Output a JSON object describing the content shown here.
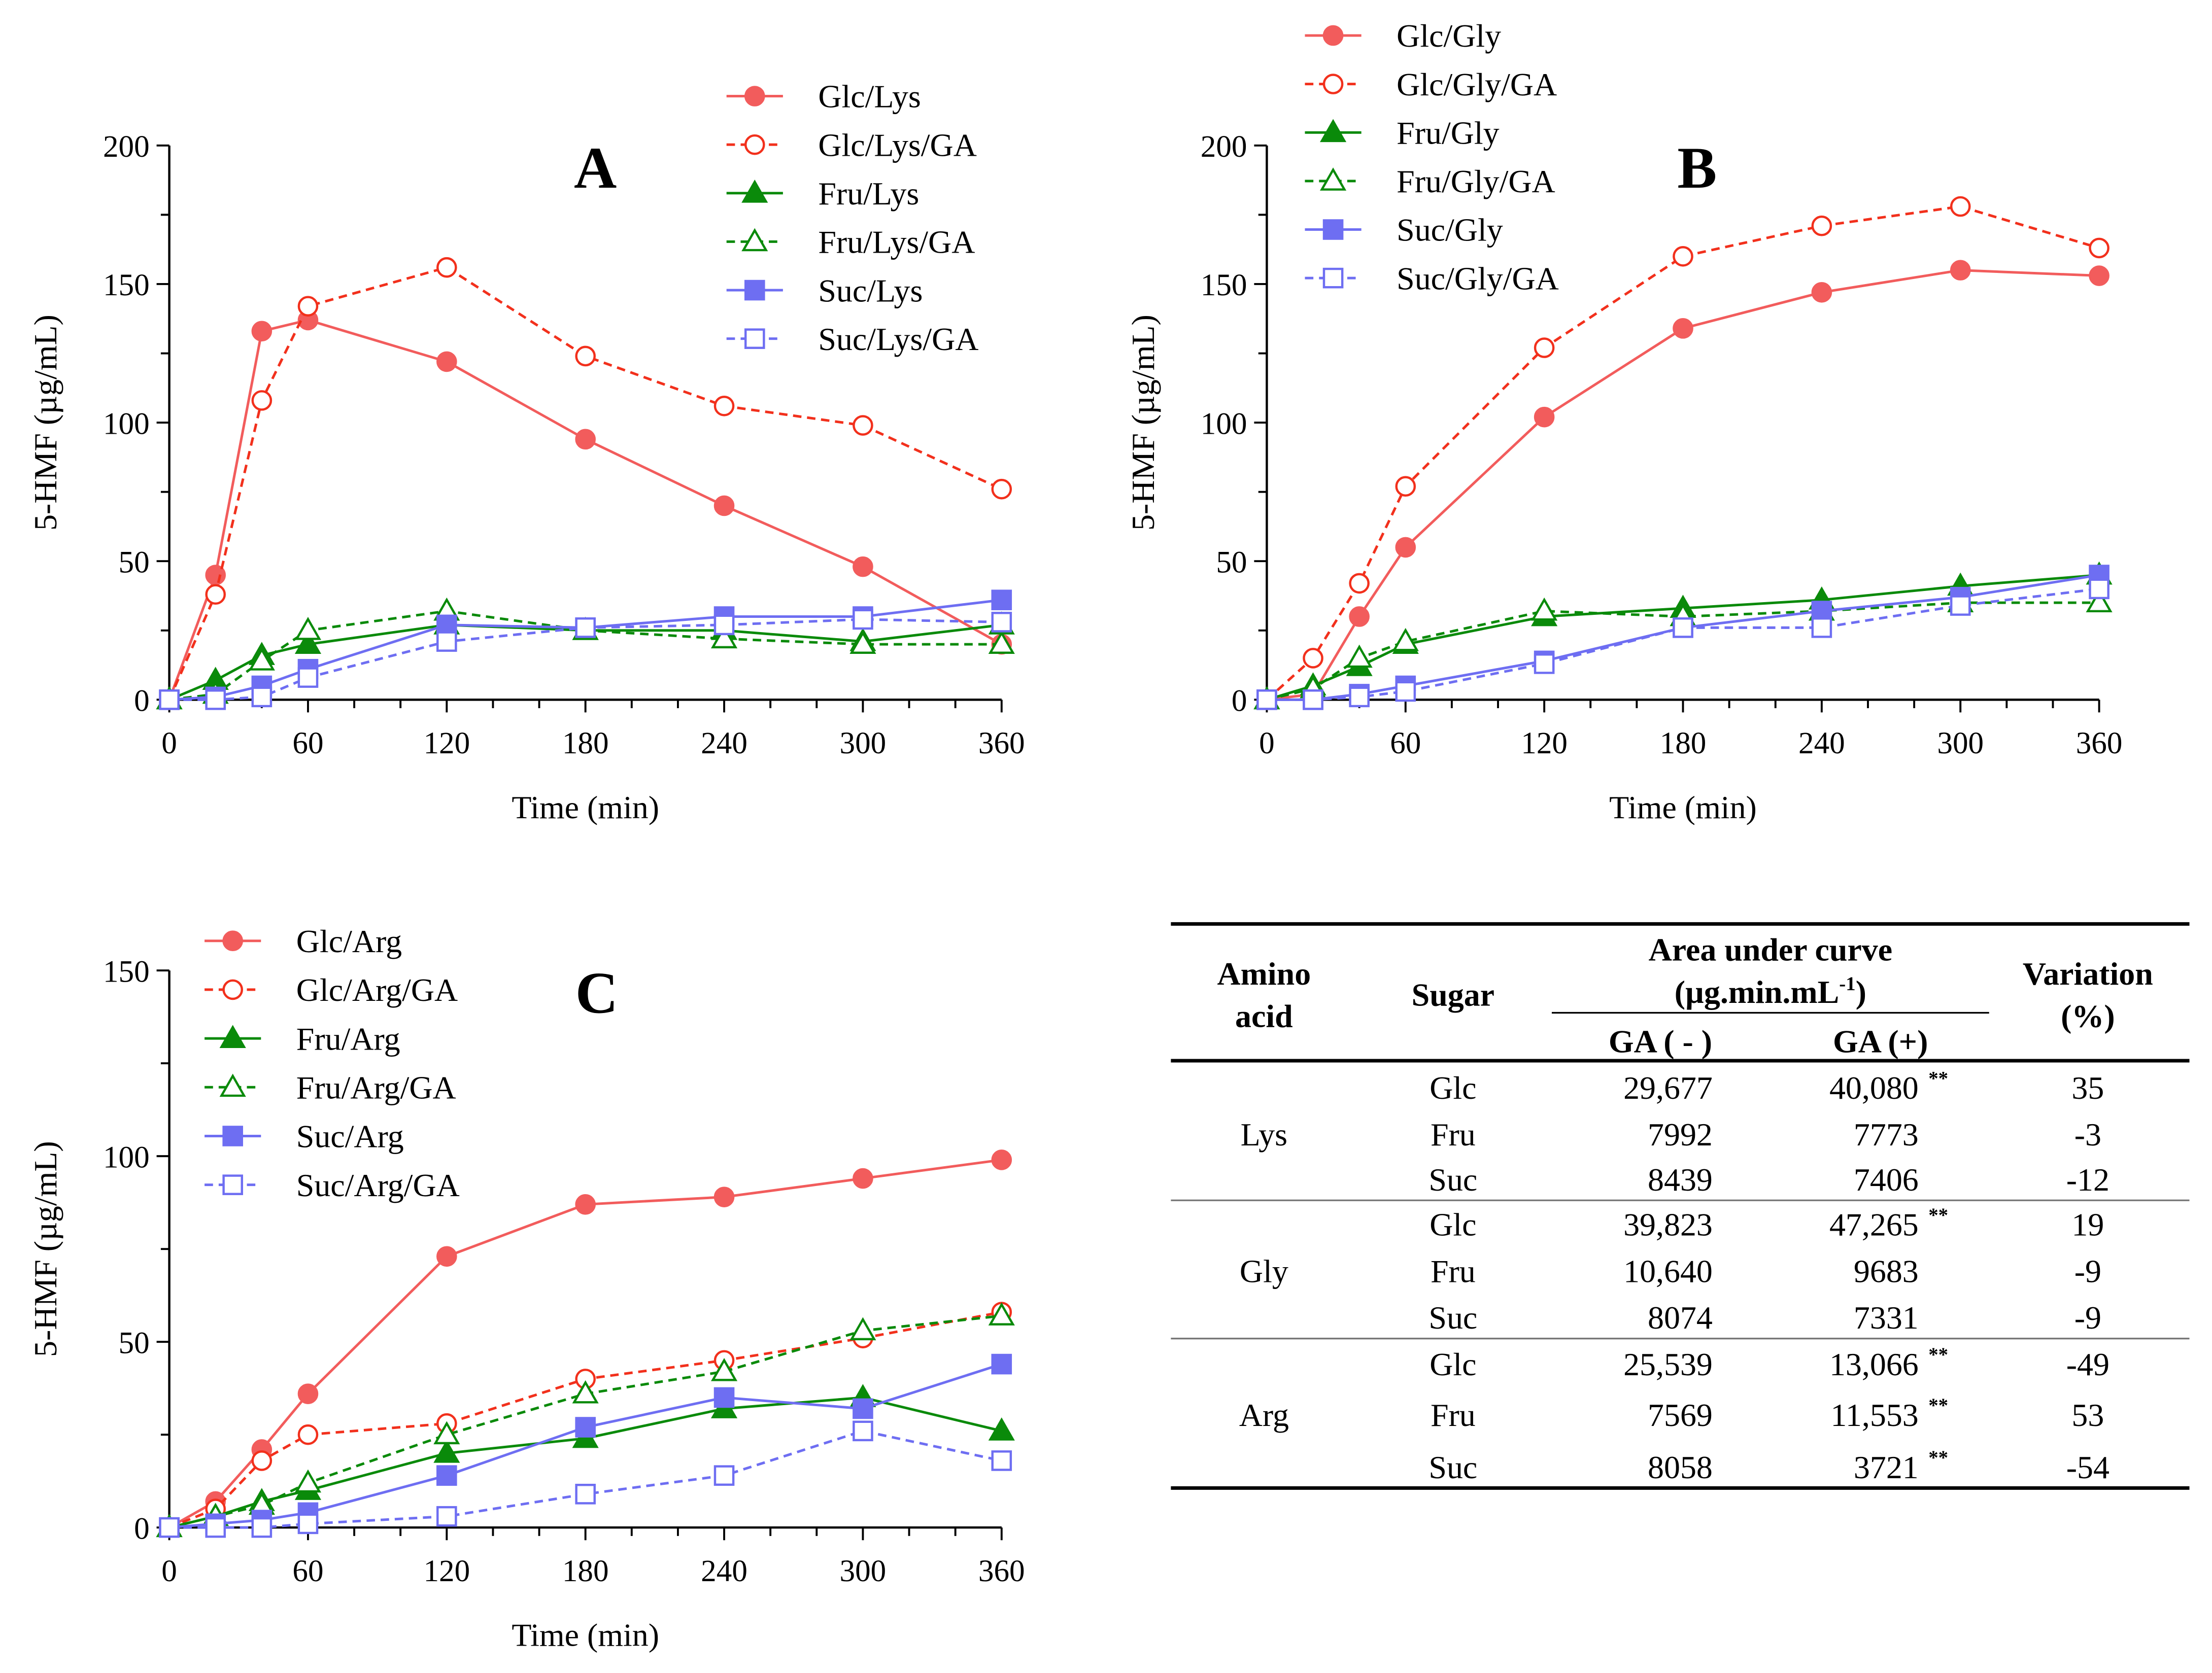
{
  "chart_data": [
    {
      "type": "line",
      "panel": "A",
      "xlabel": "Time (min)",
      "ylabel": "5-HMF (µg/mL)",
      "x": [
        0,
        20,
        40,
        60,
        120,
        180,
        240,
        300,
        360
      ],
      "xticks": [
        "0",
        "60",
        "120",
        "180",
        "240",
        "300",
        "360"
      ],
      "yticks": [
        "0",
        "50",
        "100",
        "150",
        "200"
      ],
      "xlim": [
        0,
        360
      ],
      "ylim": [
        0,
        200
      ],
      "legend_position": "top-right",
      "series": [
        {
          "name": "Glc/Lys",
          "color": "#f25c5c",
          "style": "solid",
          "marker": "circle-filled",
          "values": [
            0,
            45,
            133,
            137,
            122,
            94,
            70,
            48,
            20
          ]
        },
        {
          "name": "Glc/Lys/GA",
          "color": "#f2301c",
          "style": "dashed",
          "marker": "circle-open",
          "values": [
            0,
            38,
            108,
            142,
            156,
            124,
            106,
            99,
            76
          ]
        },
        {
          "name": "Fru/Lys",
          "color": "#0a8a0a",
          "style": "solid",
          "marker": "triangle-filled",
          "values": [
            0,
            7,
            16,
            20,
            27,
            25,
            25,
            21,
            27
          ]
        },
        {
          "name": "Fru/Lys/GA",
          "color": "#0a8a0a",
          "style": "dashed",
          "marker": "triangle-open",
          "values": [
            0,
            2,
            14,
            25,
            32,
            25,
            22,
            20,
            20
          ]
        },
        {
          "name": "Suc/Lys",
          "color": "#6e6ef2",
          "style": "solid",
          "marker": "square-filled",
          "values": [
            0,
            1,
            5,
            11,
            27,
            26,
            30,
            30,
            36
          ]
        },
        {
          "name": "Suc/Lys/GA",
          "color": "#6e6ef2",
          "style": "dashed",
          "marker": "square-open",
          "values": [
            0,
            0,
            1,
            8,
            21,
            26,
            27,
            29,
            28
          ]
        }
      ]
    },
    {
      "type": "line",
      "panel": "B",
      "xlabel": "Time (min)",
      "ylabel": "5-HMF (µg/mL)",
      "x": [
        0,
        20,
        40,
        60,
        120,
        180,
        240,
        300,
        360
      ],
      "xticks": [
        "0",
        "60",
        "120",
        "180",
        "240",
        "300",
        "360"
      ],
      "yticks": [
        "0",
        "50",
        "100",
        "150",
        "200"
      ],
      "xlim": [
        0,
        360
      ],
      "ylim": [
        0,
        200
      ],
      "legend_position": "top-left",
      "series": [
        {
          "name": "Glc/Gly",
          "color": "#f25c5c",
          "style": "solid",
          "marker": "circle-filled",
          "values": [
            0,
            2,
            30,
            55,
            102,
            134,
            147,
            155,
            153
          ]
        },
        {
          "name": "Glc/Gly/GA",
          "color": "#f2301c",
          "style": "dashed",
          "marker": "circle-open",
          "values": [
            0,
            15,
            42,
            77,
            127,
            160,
            171,
            178,
            163
          ]
        },
        {
          "name": "Fru/Gly",
          "color": "#0a8a0a",
          "style": "solid",
          "marker": "triangle-filled",
          "values": [
            0,
            5,
            12,
            20,
            30,
            33,
            36,
            41,
            45
          ]
        },
        {
          "name": "Fru/Gly/GA",
          "color": "#0a8a0a",
          "style": "dashed",
          "marker": "triangle-open",
          "values": [
            0,
            4,
            15,
            21,
            32,
            30,
            32,
            35,
            35
          ]
        },
        {
          "name": "Suc/Gly",
          "color": "#6e6ef2",
          "style": "solid",
          "marker": "square-filled",
          "values": [
            0,
            0,
            2,
            5,
            14,
            26,
            32,
            37,
            45
          ]
        },
        {
          "name": "Suc/Gly/GA",
          "color": "#6e6ef2",
          "style": "dashed",
          "marker": "square-open",
          "values": [
            0,
            0,
            1,
            3,
            13,
            26,
            26,
            34,
            40
          ]
        }
      ]
    },
    {
      "type": "line",
      "panel": "C",
      "xlabel": "Time (min)",
      "ylabel": "5-HMF (µg/mL)",
      "x": [
        0,
        20,
        40,
        60,
        120,
        180,
        240,
        300,
        360
      ],
      "xticks": [
        "0",
        "60",
        "120",
        "180",
        "240",
        "300",
        "360"
      ],
      "yticks": [
        "0",
        "50",
        "100",
        "150"
      ],
      "xlim": [
        0,
        360
      ],
      "ylim": [
        0,
        150
      ],
      "legend_position": "top-left",
      "series": [
        {
          "name": "Glc/Arg",
          "color": "#f25c5c",
          "style": "solid",
          "marker": "circle-filled",
          "values": [
            0,
            7,
            21,
            36,
            73,
            87,
            89,
            94,
            99
          ]
        },
        {
          "name": "Glc/Arg/GA",
          "color": "#f2301c",
          "style": "dashed",
          "marker": "circle-open",
          "values": [
            0,
            5,
            18,
            25,
            28,
            40,
            45,
            51,
            58
          ]
        },
        {
          "name": "Fru/Arg",
          "color": "#0a8a0a",
          "style": "solid",
          "marker": "triangle-filled",
          "values": [
            0,
            3,
            7,
            10,
            20,
            24,
            32,
            35,
            26
          ]
        },
        {
          "name": "Fru/Arg/GA",
          "color": "#0a8a0a",
          "style": "dashed",
          "marker": "triangle-open",
          "values": [
            0,
            3,
            6,
            12,
            25,
            36,
            42,
            53,
            57
          ]
        },
        {
          "name": "Suc/Arg",
          "color": "#6e6ef2",
          "style": "solid",
          "marker": "square-filled",
          "values": [
            0,
            1,
            2,
            4,
            14,
            27,
            35,
            32,
            44
          ]
        },
        {
          "name": "Suc/Arg/GA",
          "color": "#6e6ef2",
          "style": "dashed",
          "marker": "square-open",
          "values": [
            0,
            0,
            0,
            1,
            3,
            9,
            14,
            26,
            18
          ]
        }
      ]
    },
    {
      "type": "table",
      "headers": {
        "amino_acid": [
          "Amino",
          "acid"
        ],
        "sugar": "Sugar",
        "auc": "Area under curve",
        "auc_unit": "(µg.min.mL",
        "auc_unit_sup": "-1",
        "auc_unit_end": ")",
        "ga_minus": "GA ( - )",
        "ga_plus": "GA (+)",
        "variation": [
          "Variation",
          "(%)"
        ]
      },
      "groups": [
        {
          "amino_acid": "Lys",
          "rows": [
            {
              "sugar": "Glc",
              "ga_minus": "29,677",
              "ga_plus": "40,080",
              "sig": "**",
              "variation": "35"
            },
            {
              "sugar": "Fru",
              "ga_minus": "7992",
              "ga_plus": "7773",
              "sig": "",
              "variation": "-3"
            },
            {
              "sugar": "Suc",
              "ga_minus": "8439",
              "ga_plus": "7406",
              "sig": "",
              "variation": "-12"
            }
          ]
        },
        {
          "amino_acid": "Gly",
          "rows": [
            {
              "sugar": "Glc",
              "ga_minus": "39,823",
              "ga_plus": "47,265",
              "sig": "**",
              "variation": "19"
            },
            {
              "sugar": "Fru",
              "ga_minus": "10,640",
              "ga_plus": "9683",
              "sig": "",
              "variation": "-9"
            },
            {
              "sugar": "Suc",
              "ga_minus": "8074",
              "ga_plus": "7331",
              "sig": "",
              "variation": "-9"
            }
          ]
        },
        {
          "amino_acid": "Arg",
          "rows": [
            {
              "sugar": "Glc",
              "ga_minus": "25,539",
              "ga_plus": "13,066",
              "sig": "**",
              "variation": "-49"
            },
            {
              "sugar": "Fru",
              "ga_minus": "7569",
              "ga_plus": "11,553",
              "sig": "**",
              "variation": "53"
            },
            {
              "sugar": "Suc",
              "ga_minus": "8058",
              "ga_plus": "3721",
              "sig": "**",
              "variation": "-54"
            }
          ]
        }
      ]
    }
  ]
}
